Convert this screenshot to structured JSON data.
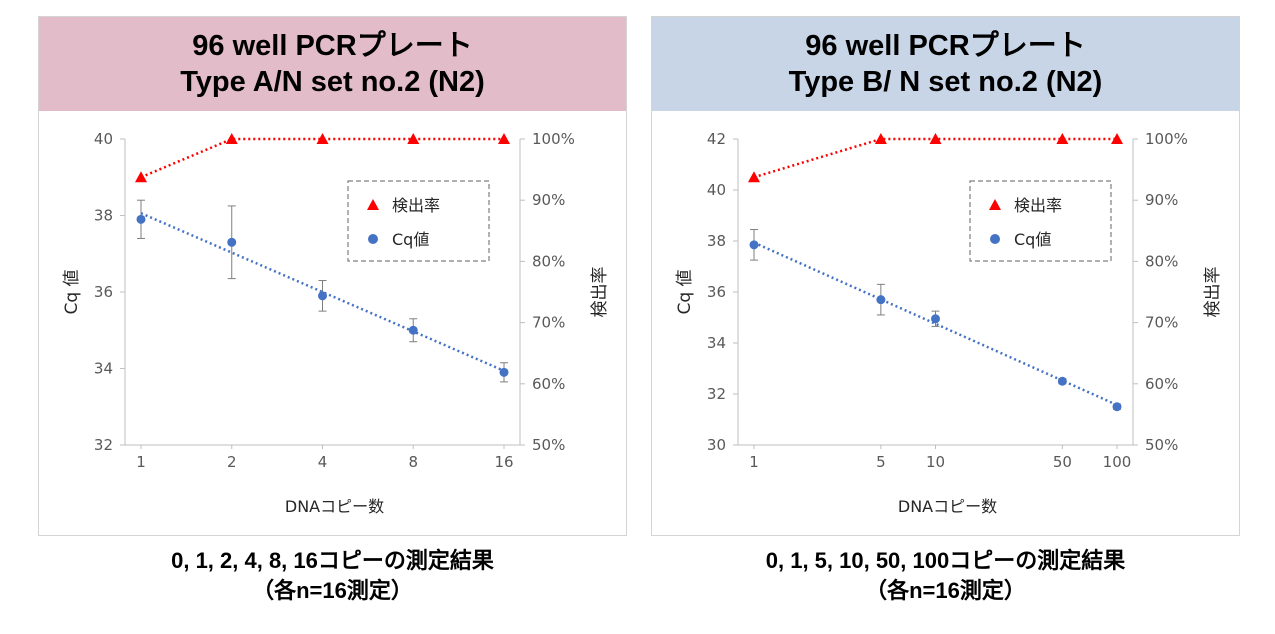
{
  "chart_data": [
    {
      "type": "line",
      "title_lines": [
        "96 well PCRプレート",
        "Type A/N set no.2 (N2)"
      ],
      "xlabel": "DNAコピー数",
      "ylabel_left": "Cq 値",
      "ylabel_right": "検出率",
      "x_scale": "log",
      "categories": [
        "1",
        "2",
        "4",
        "8",
        "16"
      ],
      "x": [
        1,
        2,
        4,
        8,
        16
      ],
      "y_left_lim": [
        32,
        40
      ],
      "y_left_ticks": [
        "32",
        "34",
        "36",
        "38",
        "40"
      ],
      "y_right_lim": [
        50,
        100
      ],
      "y_right_ticks": [
        "50%",
        "60%",
        "70%",
        "80%",
        "90%",
        "100%"
      ],
      "series": [
        {
          "name": "検出率",
          "axis": "right",
          "marker": "triangle",
          "color": "#ff0000",
          "values": [
            93.75,
            100,
            100,
            100,
            100
          ]
        },
        {
          "name": "Cq値",
          "axis": "left",
          "marker": "circle",
          "color": "#4472c4",
          "values": [
            37.9,
            37.3,
            35.9,
            35.0,
            33.9
          ],
          "error": [
            0.5,
            0.95,
            0.4,
            0.3,
            0.25
          ]
        }
      ],
      "trendline": {
        "series": "Cq値",
        "style": "dotted"
      },
      "legend_position": "upper-right, dashed box",
      "caption_lines": [
        "0, 1, 2, 4, 8, 16コピーの測定結果",
        "（各n=16測定）"
      ]
    },
    {
      "type": "line",
      "title_lines": [
        "96 well PCRプレート",
        "Type B/ N set no.2 (N2)"
      ],
      "xlabel": "DNAコピー数",
      "ylabel_left": "Cq 値",
      "ylabel_right": "検出率",
      "x_scale": "log",
      "categories": [
        "1",
        "5",
        "10",
        "50",
        "100"
      ],
      "x": [
        1,
        5,
        10,
        50,
        100
      ],
      "y_left_lim": [
        30,
        42
      ],
      "y_left_ticks": [
        "30",
        "32",
        "34",
        "36",
        "38",
        "40",
        "42"
      ],
      "y_right_lim": [
        50,
        100
      ],
      "y_right_ticks": [
        "50%",
        "60%",
        "70%",
        "80%",
        "90%",
        "100%"
      ],
      "series": [
        {
          "name": "検出率",
          "axis": "right",
          "marker": "triangle",
          "color": "#ff0000",
          "values": [
            93.75,
            100,
            100,
            100,
            100
          ]
        },
        {
          "name": "Cq値",
          "axis": "left",
          "marker": "circle",
          "color": "#4472c4",
          "values": [
            37.85,
            35.7,
            34.95,
            32.5,
            31.5
          ],
          "error": [
            0.6,
            0.6,
            0.3,
            0.1,
            0.1
          ]
        }
      ],
      "trendline": {
        "series": "Cq値",
        "style": "dotted"
      },
      "legend_position": "upper-right, dashed box",
      "caption_lines": [
        "0, 1, 5, 10, 50, 100コピーの測定結果",
        "（各n=16測定）"
      ]
    }
  ]
}
